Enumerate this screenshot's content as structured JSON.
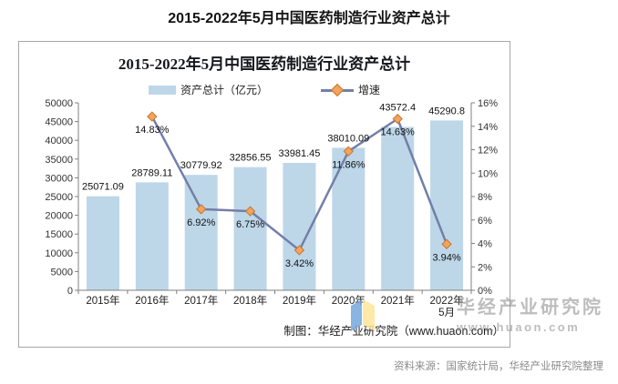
{
  "page": {
    "outer_title": "2015-2022年5月中国医药制造行业资产总计",
    "source_note": "资料来源：国家统计局，华经产业研究院整理"
  },
  "chart": {
    "title": "2015-2022年5月中国医药制造行业资产总计",
    "caption": "制图：华经产业研究院（www.huaon.com）",
    "legend": [
      "资产总计（亿元）",
      "增速"
    ],
    "watermark": {
      "name": "华经产业研究院",
      "url": "www.huaon.com",
      "logo_blue": "#76A7DC",
      "logo_yellow": "#FFE699"
    },
    "colors": {
      "bar": "#BDD7E9",
      "line": "#737FA8",
      "marker": "#F2A35C",
      "marker_stroke": "#C9772F",
      "axis": "#808080",
      "border": "#A6A6A6"
    }
  },
  "chart_data": {
    "type": "bar",
    "combo": "bar+line",
    "title": "2015-2022年5月中国医药制造行业资产总计",
    "categories": [
      "2015年",
      "2016年",
      "2017年",
      "2018年",
      "2019年",
      "2020年",
      "2021年",
      [
        "2022年",
        "5月"
      ]
    ],
    "series": [
      {
        "name": "资产总计（亿元）",
        "type": "bar",
        "axis": "left",
        "values": [
          25071.09,
          28789.11,
          30779.92,
          32856.55,
          33981.45,
          38010.09,
          43572.4,
          45290.8
        ],
        "labels": [
          "25071.09",
          "28789.11",
          "30779.92",
          "32856.55",
          "33981.45",
          "38010.09",
          "43572.4",
          "45290.8"
        ]
      },
      {
        "name": "增速",
        "type": "line",
        "axis": "right",
        "values": [
          null,
          14.83,
          6.92,
          6.75,
          3.42,
          11.86,
          14.63,
          3.94
        ],
        "labels": [
          null,
          "14.83%",
          "6.92%",
          "6.75%",
          "3.42%",
          "11.86%",
          "14.63%",
          "3.94%"
        ]
      }
    ],
    "left_axis": {
      "min": 0,
      "max": 50000,
      "step": 5000
    },
    "right_axis": {
      "min": 0,
      "max": 16,
      "step": 2,
      "suffix": "%"
    },
    "grid": false,
    "legend_position": "top"
  }
}
